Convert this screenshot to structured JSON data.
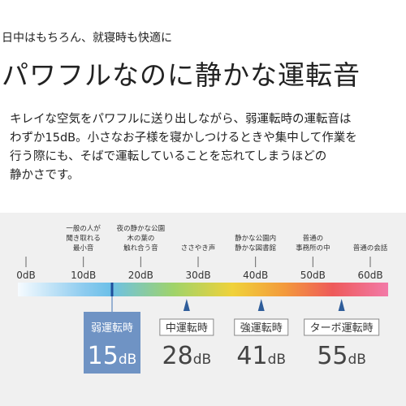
{
  "header": {
    "lead": "日中はもちろん、就寝時も快適に",
    "title": "パワフルなのに静かな運転音"
  },
  "body": {
    "lines": [
      "キレイな空気をパワフルに送り出しながら、弱運転時の運転音は",
      "わずか15dB。小さなお子様を寝かしつけるときや集中して作業を",
      "行う際にも、そばで運転していることを忘れてしまうほどの",
      "静かさです。"
    ]
  },
  "scale": {
    "unit": "dB",
    "range": [
      0,
      60
    ],
    "ticks": [
      {
        "value": 0,
        "label": "0dB"
      },
      {
        "value": 10,
        "label": "10dB"
      },
      {
        "value": 20,
        "label": "20dB"
      },
      {
        "value": 30,
        "label": "30dB"
      },
      {
        "value": 40,
        "label": "40dB"
      },
      {
        "value": 50,
        "label": "50dB"
      },
      {
        "value": 60,
        "label": "60dB"
      }
    ],
    "examples": [
      {
        "value": 10,
        "lines": [
          "一般の人が",
          "聞き取れる",
          "最小音"
        ]
      },
      {
        "value": 20,
        "lines": [
          "夜の静かな公園",
          "木の葉の",
          "触れ合う音"
        ]
      },
      {
        "value": 30,
        "lines": [
          "ささやき声"
        ]
      },
      {
        "value": 40,
        "lines": [
          "静かな公園内",
          "静かな図書館"
        ]
      },
      {
        "value": 50,
        "lines": [
          "普通の",
          "事務所の中"
        ]
      },
      {
        "value": 60,
        "lines": [
          "普通の会話"
        ]
      }
    ],
    "modes": [
      {
        "name": "弱運転時",
        "value": 15
      },
      {
        "name": "中運転時",
        "value": 28
      },
      {
        "name": "強運転時",
        "value": 41
      },
      {
        "name": "ターボ運転時",
        "value": 55
      }
    ]
  }
}
